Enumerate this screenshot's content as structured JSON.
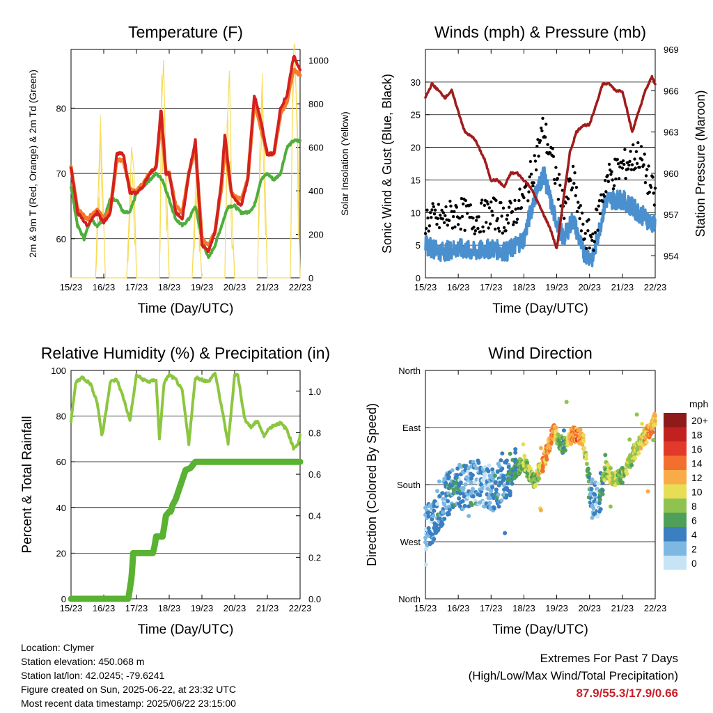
{
  "colors": {
    "temp_2m": "#d2211e",
    "temp_9m": "#f47a2c",
    "dewpoint": "#4fae3c",
    "solar": "#f7dc56",
    "wind": "#4a90cf",
    "gust": "#000000",
    "pressure": "#a01c1c",
    "rh": "#8cc63f",
    "precip": "#59b231"
  },
  "x_ticks": [
    "15/23",
    "16/23",
    "17/23",
    "18/23",
    "19/23",
    "20/23",
    "21/23",
    "22/23"
  ],
  "x_label": "Time (Day/UTC)",
  "info": {
    "location": "Location: Clymer",
    "elevation": "Station elevation: 450.068 m",
    "latlon": "Station lat/lon: 42.0245; -79.6241",
    "created": "Figure created on Sun, 2025-06-22, at 23:32 UTC",
    "recent": "Most recent data timestamp: 2025/06/22 23:15:00"
  },
  "extremes": {
    "line1": "Extremes For Past 7 Days",
    "line2": "(High/Low/Max Wind/Total Precipitation)",
    "values": "87.9/55.3/17.9/0.66"
  },
  "chart_data": [
    {
      "type": "line",
      "title": "Temperature (F)",
      "xlabel": "Time (Day/UTC)",
      "ylabel": "2m & 9m T (Red, Orange) & 2m Td (Green)",
      "y2label": "Solar Insolation (Yellow)",
      "ylim": [
        54,
        89
      ],
      "y_ticks": [
        60,
        70,
        80
      ],
      "y2lim": [
        0,
        1050
      ],
      "y2_ticks": [
        0,
        200,
        400,
        600,
        800,
        1000
      ],
      "grid": true,
      "series": [
        {
          "name": "2m T",
          "axis": "left",
          "x": [
            0,
            0.2,
            0.5,
            0.8,
            1,
            1.2,
            1.4,
            1.6,
            1.8,
            2,
            2.2,
            2.4,
            2.6,
            2.75,
            2.9,
            3,
            3.2,
            3.4,
            3.6,
            3.8,
            4,
            4.2,
            4.4,
            4.6,
            4.7,
            4.9,
            5,
            5.2,
            5.4,
            5.6,
            5.8,
            6,
            6.2,
            6.4,
            6.6,
            6.8,
            7
          ],
          "values": [
            71,
            64,
            62,
            64,
            62.5,
            64,
            73,
            73,
            67,
            67,
            68,
            70,
            71,
            80,
            70,
            70,
            64,
            63,
            70,
            75,
            59,
            58,
            61,
            69,
            76,
            67,
            66,
            65,
            69,
            82,
            78,
            73,
            73,
            80,
            82,
            88,
            86
          ]
        },
        {
          "name": "9m T",
          "axis": "left",
          "x": [
            0,
            0.2,
            0.5,
            0.8,
            1,
            1.2,
            1.4,
            1.6,
            1.8,
            2,
            2.2,
            2.4,
            2.6,
            2.75,
            2.9,
            3,
            3.2,
            3.4,
            3.6,
            3.8,
            4,
            4.2,
            4.4,
            4.6,
            4.7,
            4.9,
            5,
            5.2,
            5.4,
            5.6,
            5.8,
            6,
            6.2,
            6.4,
            6.6,
            6.8,
            7
          ],
          "values": [
            71,
            64.5,
            63,
            64.5,
            63,
            64.5,
            72,
            72,
            67.5,
            67.5,
            68.5,
            70,
            71,
            78,
            70,
            70,
            65,
            64,
            70,
            74,
            60,
            59,
            61,
            68,
            74,
            67,
            66.5,
            66,
            69,
            81,
            77,
            73,
            73,
            79,
            81,
            86,
            85
          ]
        },
        {
          "name": "2m Td",
          "axis": "left",
          "x": [
            0,
            0.2,
            0.4,
            0.6,
            0.8,
            1,
            1.2,
            1.4,
            1.6,
            1.8,
            2,
            2.2,
            2.4,
            2.6,
            2.8,
            3,
            3.2,
            3.4,
            3.6,
            3.8,
            4,
            4.2,
            4.4,
            4.6,
            4.8,
            5,
            5.2,
            5.4,
            5.6,
            5.8,
            6,
            6.2,
            6.4,
            6.6,
            6.8,
            7
          ],
          "values": [
            68,
            62,
            60,
            63,
            62,
            63,
            66,
            66,
            64,
            64,
            67,
            68,
            69,
            70,
            69,
            66,
            63,
            62,
            63,
            65,
            60,
            57,
            59,
            62,
            65,
            65,
            64,
            64,
            65,
            69,
            70,
            69,
            70,
            74,
            75,
            75
          ]
        },
        {
          "name": "Solar Insolation",
          "axis": "right",
          "x": [
            0,
            0.75,
            0.82,
            0.9,
            0.97,
            1.05,
            1.7,
            1.78,
            1.85,
            1.92,
            2,
            2.7,
            2.77,
            2.83,
            2.9,
            3,
            3.7,
            3.78,
            3.85,
            3.92,
            4,
            4.7,
            4.77,
            4.84,
            4.92,
            5,
            5.7,
            5.77,
            5.84,
            5.92,
            6,
            6.7,
            6.77,
            6.84,
            6.92,
            7
          ],
          "values": [
            0,
            0,
            350,
            700,
            400,
            0,
            0,
            300,
            600,
            500,
            0,
            0,
            800,
            1000,
            500,
            0,
            0,
            300,
            600,
            200,
            0,
            0,
            700,
            950,
            300,
            0,
            0,
            600,
            900,
            500,
            0,
            0,
            800,
            1000,
            700,
            0
          ]
        }
      ]
    },
    {
      "type": "scatter",
      "title": "Winds (mph) & Pressure (mb)",
      "xlabel": "Time (Day/UTC)",
      "ylabel": "Sonic Wind & Gust (Blue, Black)",
      "y2label": "Station Pressure (Maroon)",
      "ylim": [
        0,
        35
      ],
      "y_ticks": [
        0,
        5,
        10,
        15,
        20,
        25,
        30
      ],
      "y2lim": [
        952.4,
        969
      ],
      "y2_ticks": [
        954,
        957,
        960,
        963,
        966,
        969
      ],
      "grid": true,
      "series": [
        {
          "name": "Sonic Wind",
          "x": [
            0,
            0.5,
            1,
            1.5,
            2,
            2.5,
            3,
            3.3,
            3.6,
            3.9,
            4.2,
            4.5,
            4.8,
            5.1,
            5.5,
            6,
            6.5,
            7
          ],
          "values": [
            5,
            4,
            4.5,
            4,
            4.5,
            4,
            6,
            12,
            16,
            10,
            6,
            9,
            4,
            3,
            12,
            12,
            10,
            8
          ]
        },
        {
          "name": "Gust",
          "x": [
            0,
            0.5,
            1,
            1.5,
            2,
            2.5,
            3,
            3.3,
            3.6,
            3.9,
            4.2,
            4.5,
            4.8,
            5.1,
            5.5,
            6,
            6.5,
            7
          ],
          "values": [
            9,
            9,
            10,
            9,
            10,
            9,
            12,
            17,
            23,
            17,
            11,
            15,
            7,
            6,
            15,
            17,
            19,
            12
          ]
        },
        {
          "name": "Station Pressure",
          "x": [
            0,
            0.2,
            0.4,
            0.6,
            0.8,
            1,
            1.2,
            1.5,
            1.8,
            2,
            2.2,
            2.4,
            2.6,
            2.8,
            3,
            3.2,
            3.4,
            3.6,
            3.8,
            4,
            4.2,
            4.4,
            4.6,
            4.8,
            5,
            5.2,
            5.4,
            5.6,
            5.8,
            6,
            6.1,
            6.3,
            6.5,
            6.7,
            6.9,
            7
          ],
          "values": [
            965.5,
            966.5,
            966,
            965.5,
            966,
            964.5,
            963,
            962.5,
            961,
            959.5,
            959.5,
            959,
            960,
            960,
            959.5,
            959,
            958,
            957,
            956,
            954.5,
            958,
            961.5,
            963,
            963.5,
            963.5,
            965,
            966.5,
            966.5,
            966,
            966,
            965,
            963,
            964.5,
            966,
            967,
            966.5
          ]
        }
      ]
    },
    {
      "type": "line",
      "title": "Relative Humidity (%) & Precipitation (in)",
      "xlabel": "Time (Day/UTC)",
      "ylabel": "Percent & Total Rainfall",
      "ylim": [
        0,
        100
      ],
      "y_ticks": [
        0,
        20,
        40,
        60,
        80,
        100
      ],
      "y2lim": [
        0,
        1.1
      ],
      "y2_ticks": [
        "0.0",
        "0.2",
        "0.4",
        "0.6",
        "0.8",
        "1.0"
      ],
      "grid": true,
      "series": [
        {
          "name": "Relative Humidity",
          "axis": "left",
          "x": [
            0,
            0.15,
            0.35,
            0.6,
            0.8,
            0.95,
            1.2,
            1.4,
            1.6,
            1.8,
            2,
            2.2,
            2.4,
            2.6,
            2.7,
            2.85,
            3,
            3.2,
            3.4,
            3.6,
            3.8,
            4,
            4.2,
            4.4,
            4.6,
            4.8,
            5,
            5.1,
            5.3,
            5.5,
            5.7,
            5.9,
            6,
            6.2,
            6.4,
            6.6,
            6.8,
            6.95,
            7
          ],
          "values": [
            78,
            95,
            97,
            94,
            86,
            71,
            95,
            96,
            88,
            78,
            98,
            96,
            95,
            96,
            70,
            95,
            98,
            96,
            91,
            68,
            97,
            96,
            95,
            99,
            84,
            68,
            98,
            98,
            79,
            75,
            78,
            71,
            74,
            76,
            77,
            74,
            66,
            68,
            72
          ]
        },
        {
          "name": "Total Rainfall",
          "axis": "right",
          "x": [
            0,
            1.75,
            1.8,
            1.85,
            1.9,
            2.5,
            2.55,
            2.6,
            2.8,
            2.9,
            3.0,
            3.05,
            3.1,
            3.2,
            3.35,
            3.5,
            3.65,
            3.7,
            3.75,
            3.8,
            3.9,
            4.0,
            7
          ],
          "values": [
            0,
            0,
            0.05,
            0.1,
            0.22,
            0.22,
            0.25,
            0.3,
            0.3,
            0.4,
            0.42,
            0.42,
            0.45,
            0.48,
            0.55,
            0.62,
            0.63,
            0.64,
            0.65,
            0.66,
            0.66,
            0.66,
            0.66
          ]
        }
      ]
    },
    {
      "type": "scatter",
      "title": "Wind Direction",
      "xlabel": "Time (Day/UTC)",
      "ylabel": "Direction (Colored By Speed)",
      "y_ticks": [
        "North",
        "East",
        "South",
        "West",
        "North"
      ],
      "ylim": [
        0,
        360
      ],
      "grid": true,
      "legend": {
        "position": "right",
        "title": "mph",
        "labels": [
          "20+",
          "18",
          "16",
          "14",
          "12",
          "10",
          "8",
          "6",
          "4",
          "2",
          "0"
        ],
        "colors": [
          "#8e1a1a",
          "#c2221f",
          "#e23a2a",
          "#f36f2d",
          "#f9ab47",
          "#e8de55",
          "#8fc24f",
          "#4e9f5a",
          "#3a7fbf",
          "#7cb8e2",
          "#c6e4f6"
        ]
      },
      "series": [
        {
          "name": "direction",
          "x": [
            0,
            0.3,
            0.6,
            0.9,
            1.2,
            1.5,
            1.8,
            2.1,
            2.4,
            2.7,
            3.0,
            3.3,
            3.6,
            3.9,
            4.2,
            4.5,
            4.8,
            5.1,
            5.3,
            5.5,
            5.7,
            6.0,
            6.3,
            6.6,
            6.9,
            7
          ],
          "values": [
            110,
            130,
            160,
            180,
            175,
            185,
            180,
            170,
            190,
            200,
            215,
            185,
            215,
            265,
            240,
            260,
            255,
            150,
            160,
            205,
            190,
            195,
            225,
            250,
            270,
            285
          ],
          "speed": [
            3,
            4,
            4,
            5,
            4,
            4,
            3,
            4,
            5,
            6,
            9,
            8,
            13,
            14,
            6,
            15,
            12,
            3,
            4,
            10,
            11,
            8,
            10,
            11,
            13,
            12
          ]
        }
      ]
    }
  ]
}
